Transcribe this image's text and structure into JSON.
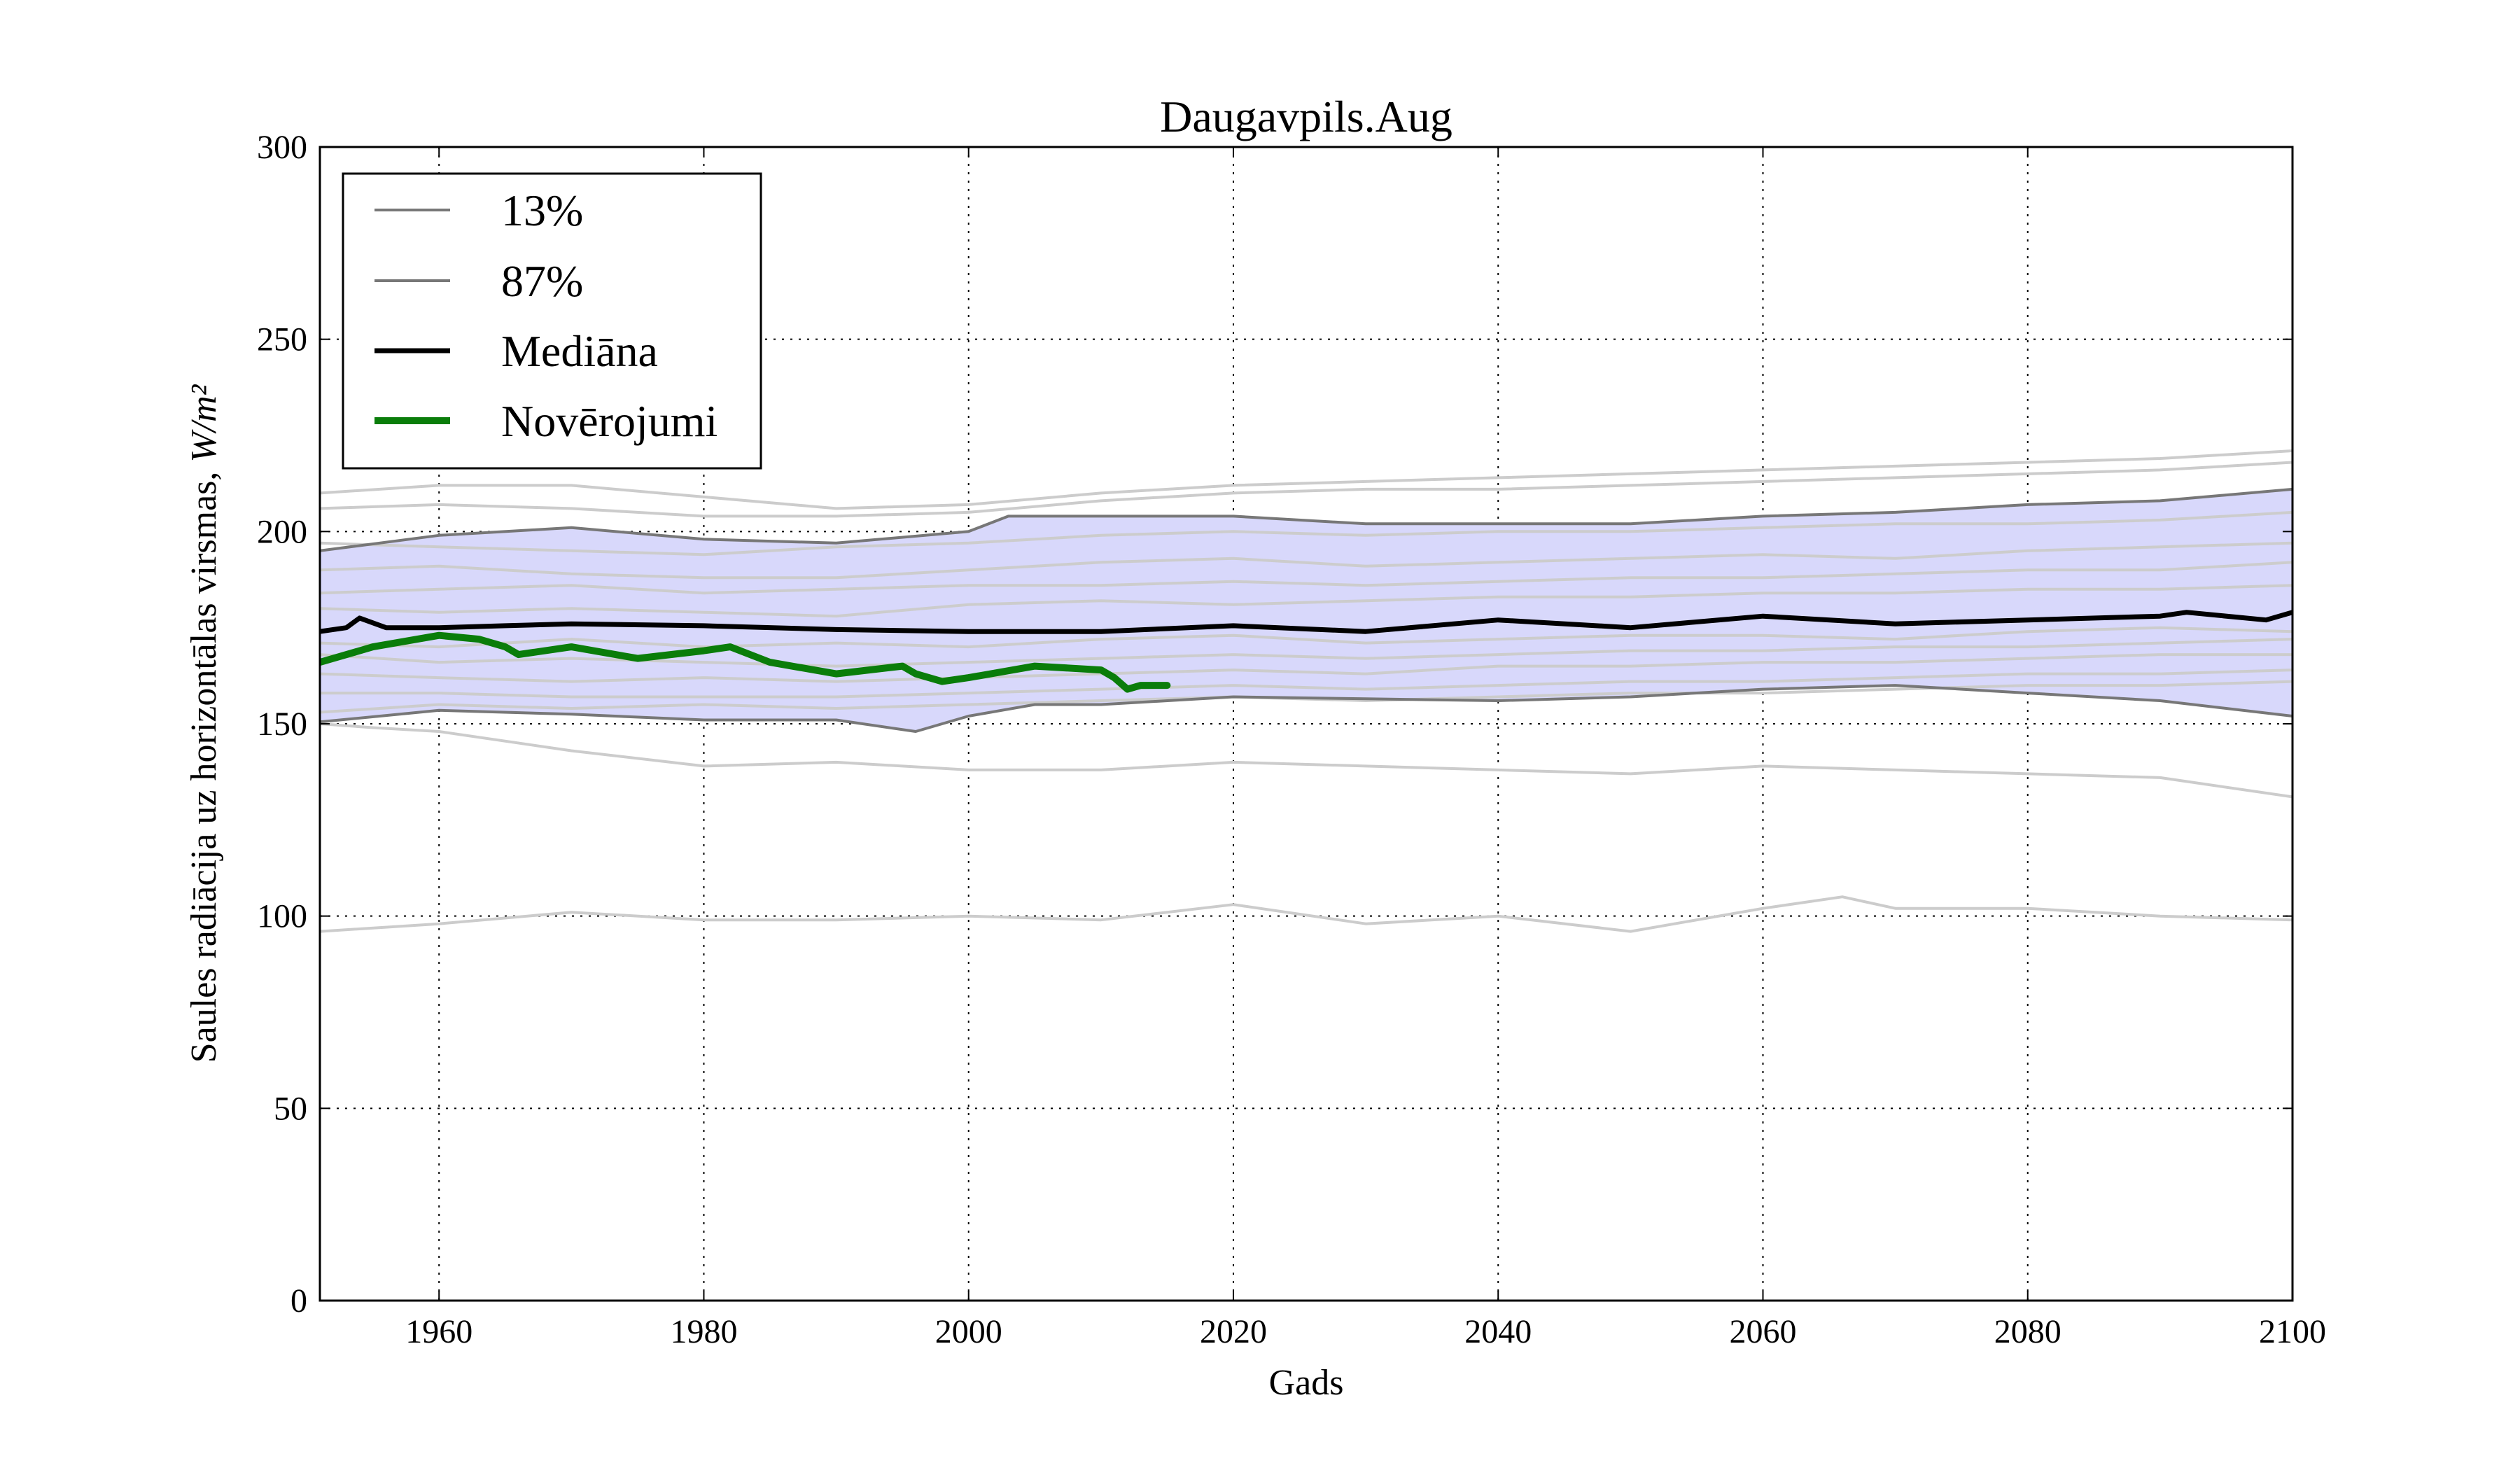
{
  "chart_data": {
    "type": "line",
    "title": "Daugavpils.Aug",
    "xlabel": "Gads",
    "ylabel": "Saules radiācija uz horizontālas virsmas,",
    "ylabel_unit": "W/m²",
    "xlim": [
      1951,
      2100
    ],
    "ylim": [
      0,
      300
    ],
    "xticks": [
      "1960",
      "1980",
      "2000",
      "2020",
      "2040",
      "2060",
      "2080",
      "2100"
    ],
    "yticks": [
      "0",
      "50",
      "100",
      "150",
      "200",
      "250",
      "300"
    ],
    "grid": true,
    "legend_position": "top-left",
    "band": {
      "color": "#d8d8fb",
      "lower_series": "13%",
      "upper_series": "87%"
    },
    "series": [
      {
        "name": "13%",
        "color": "#777777",
        "x": [
          1951,
          1960,
          1970,
          1980,
          1990,
          1996,
          2000,
          2005,
          2010,
          2020,
          2030,
          2040,
          2050,
          2060,
          2070,
          2080,
          2090,
          2100
        ],
        "y": [
          150.5,
          153.5,
          152.5,
          151,
          151,
          148,
          152,
          155,
          155,
          157,
          156.5,
          156,
          157,
          159,
          160,
          158,
          156,
          152
        ]
      },
      {
        "name": "87%",
        "color": "#777777",
        "x": [
          1951,
          1960,
          1970,
          1980,
          1990,
          2000,
          2003,
          2010,
          2020,
          2030,
          2040,
          2050,
          2060,
          2070,
          2080,
          2090,
          2100
        ],
        "y": [
          195,
          199,
          201,
          198,
          197,
          200,
          204,
          204,
          204,
          202,
          202,
          202,
          204,
          205,
          207,
          208,
          211
        ]
      },
      {
        "name": "Mediāna",
        "color": "#000000",
        "x": [
          1951,
          1953,
          1954,
          1956,
          1960,
          1965,
          1970,
          1980,
          1990,
          2000,
          2010,
          2020,
          2030,
          2040,
          2050,
          2060,
          2070,
          2080,
          2090,
          2092,
          2098,
          2100
        ],
        "y": [
          174,
          175,
          177.5,
          175,
          175,
          175.5,
          176,
          175.5,
          174.5,
          174,
          174,
          175.5,
          174,
          177,
          175,
          178,
          176,
          177,
          178,
          179,
          177,
          179
        ]
      },
      {
        "name": "Novērojumi",
        "color": "#0a7d0a",
        "x": [
          1951,
          1955,
          1960,
          1963,
          1965,
          1966,
          1970,
          1975,
          1980,
          1982,
          1985,
          1990,
          1995,
          1996,
          1998,
          2000,
          2005,
          2010,
          2011,
          2012,
          2013,
          2015
        ],
        "y": [
          166,
          170,
          173,
          172,
          170,
          168,
          170,
          167,
          169,
          170,
          166,
          163,
          165,
          163,
          161,
          162,
          165,
          164,
          162,
          159,
          160,
          160
        ]
      }
    ],
    "ensemble_members": [
      {
        "x": [
          1951,
          1960,
          1970,
          1980,
          1990,
          2000,
          2010,
          2020,
          2030,
          2040,
          2050,
          2060,
          2070,
          2080,
          2090,
          2100
        ],
        "y": [
          210,
          212,
          212,
          209,
          206,
          207,
          210,
          212,
          213,
          214,
          215,
          216,
          217,
          218,
          219,
          221
        ]
      },
      {
        "x": [
          1951,
          1960,
          1970,
          1980,
          1990,
          2000,
          2010,
          2020,
          2030,
          2040,
          2050,
          2060,
          2070,
          2080,
          2090,
          2100
        ],
        "y": [
          206,
          207,
          206,
          204,
          204,
          205,
          208,
          210,
          211,
          211,
          212,
          213,
          214,
          215,
          216,
          218
        ]
      },
      {
        "x": [
          1951,
          1960,
          1970,
          1980,
          1990,
          2000,
          2010,
          2020,
          2030,
          2040,
          2050,
          2060,
          2070,
          2080,
          2090,
          2100
        ],
        "y": [
          197,
          196,
          195,
          194,
          196,
          197,
          199,
          200,
          199,
          200,
          200,
          201,
          202,
          202,
          203,
          205
        ]
      },
      {
        "x": [
          1951,
          1960,
          1970,
          1980,
          1990,
          2000,
          2010,
          2020,
          2030,
          2040,
          2050,
          2060,
          2070,
          2080,
          2090,
          2100
        ],
        "y": [
          190,
          191,
          189,
          188,
          188,
          190,
          192,
          193,
          191,
          192,
          193,
          194,
          193,
          195,
          196,
          197
        ]
      },
      {
        "x": [
          1951,
          1960,
          1970,
          1980,
          1990,
          2000,
          2010,
          2020,
          2030,
          2040,
          2050,
          2060,
          2070,
          2080,
          2090,
          2100
        ],
        "y": [
          184,
          185,
          186,
          184,
          185,
          186,
          186,
          187,
          186,
          187,
          188,
          188,
          189,
          190,
          190,
          192
        ]
      },
      {
        "x": [
          1951,
          1960,
          1970,
          1980,
          1990,
          2000,
          2010,
          2020,
          2030,
          2040,
          2050,
          2060,
          2070,
          2080,
          2090,
          2100
        ],
        "y": [
          180,
          179,
          180,
          179,
          178,
          181,
          182,
          181,
          182,
          183,
          183,
          184,
          184,
          185,
          185,
          186
        ]
      },
      {
        "x": [
          1951,
          1960,
          1970,
          1980,
          1990,
          2000,
          2010,
          2020,
          2030,
          2040,
          2050,
          2060,
          2070,
          2080,
          2090,
          2100
        ],
        "y": [
          171,
          170,
          172,
          170,
          171,
          170,
          172,
          173,
          171,
          172,
          173,
          173,
          172,
          174,
          175,
          174
        ]
      },
      {
        "x": [
          1951,
          1960,
          1970,
          1980,
          1990,
          2000,
          2010,
          2020,
          2030,
          2040,
          2050,
          2060,
          2070,
          2080,
          2090,
          2100
        ],
        "y": [
          168,
          166,
          167,
          166,
          165,
          166,
          167,
          168,
          167,
          168,
          169,
          169,
          170,
          170,
          171,
          172
        ]
      },
      {
        "x": [
          1951,
          1960,
          1970,
          1980,
          1990,
          2000,
          2010,
          2020,
          2030,
          2040,
          2050,
          2060,
          2070,
          2080,
          2090,
          2100
        ],
        "y": [
          163,
          162,
          161,
          162,
          161,
          162,
          163,
          164,
          163,
          165,
          165,
          166,
          166,
          167,
          168,
          168
        ]
      },
      {
        "x": [
          1951,
          1960,
          1970,
          1980,
          1990,
          2000,
          2010,
          2020,
          2030,
          2040,
          2050,
          2060,
          2070,
          2080,
          2090,
          2100
        ],
        "y": [
          158,
          158,
          157,
          157,
          157,
          158,
          159,
          160,
          159,
          160,
          161,
          161,
          162,
          163,
          163,
          164
        ]
      },
      {
        "x": [
          1951,
          1960,
          1970,
          1980,
          1990,
          2000,
          2010,
          2020,
          2030,
          2040,
          2050,
          2060,
          2070,
          2080,
          2090,
          2100
        ],
        "y": [
          153,
          155,
          154,
          155,
          154,
          155,
          156,
          157,
          156,
          157,
          158,
          158,
          159,
          160,
          160,
          161
        ]
      },
      {
        "x": [
          1951,
          1955,
          1960,
          1970,
          1980,
          1990,
          2000,
          2010,
          2020,
          2030,
          2040,
          2050,
          2060,
          2070,
          2080,
          2090,
          2100
        ],
        "y": [
          150,
          149,
          148,
          143,
          139,
          140,
          138,
          138,
          140,
          139,
          138,
          137,
          139,
          138,
          137,
          136,
          131
        ]
      },
      {
        "x": [
          1951,
          1960,
          1970,
          1980,
          1990,
          2000,
          2010,
          2020,
          2030,
          2040,
          2050,
          2060,
          2066,
          2070,
          2080,
          2090,
          2100
        ],
        "y": [
          96,
          98,
          101,
          99,
          99,
          100,
          99,
          103,
          98,
          100,
          96,
          102,
          105,
          102,
          102,
          100,
          99
        ]
      }
    ]
  }
}
